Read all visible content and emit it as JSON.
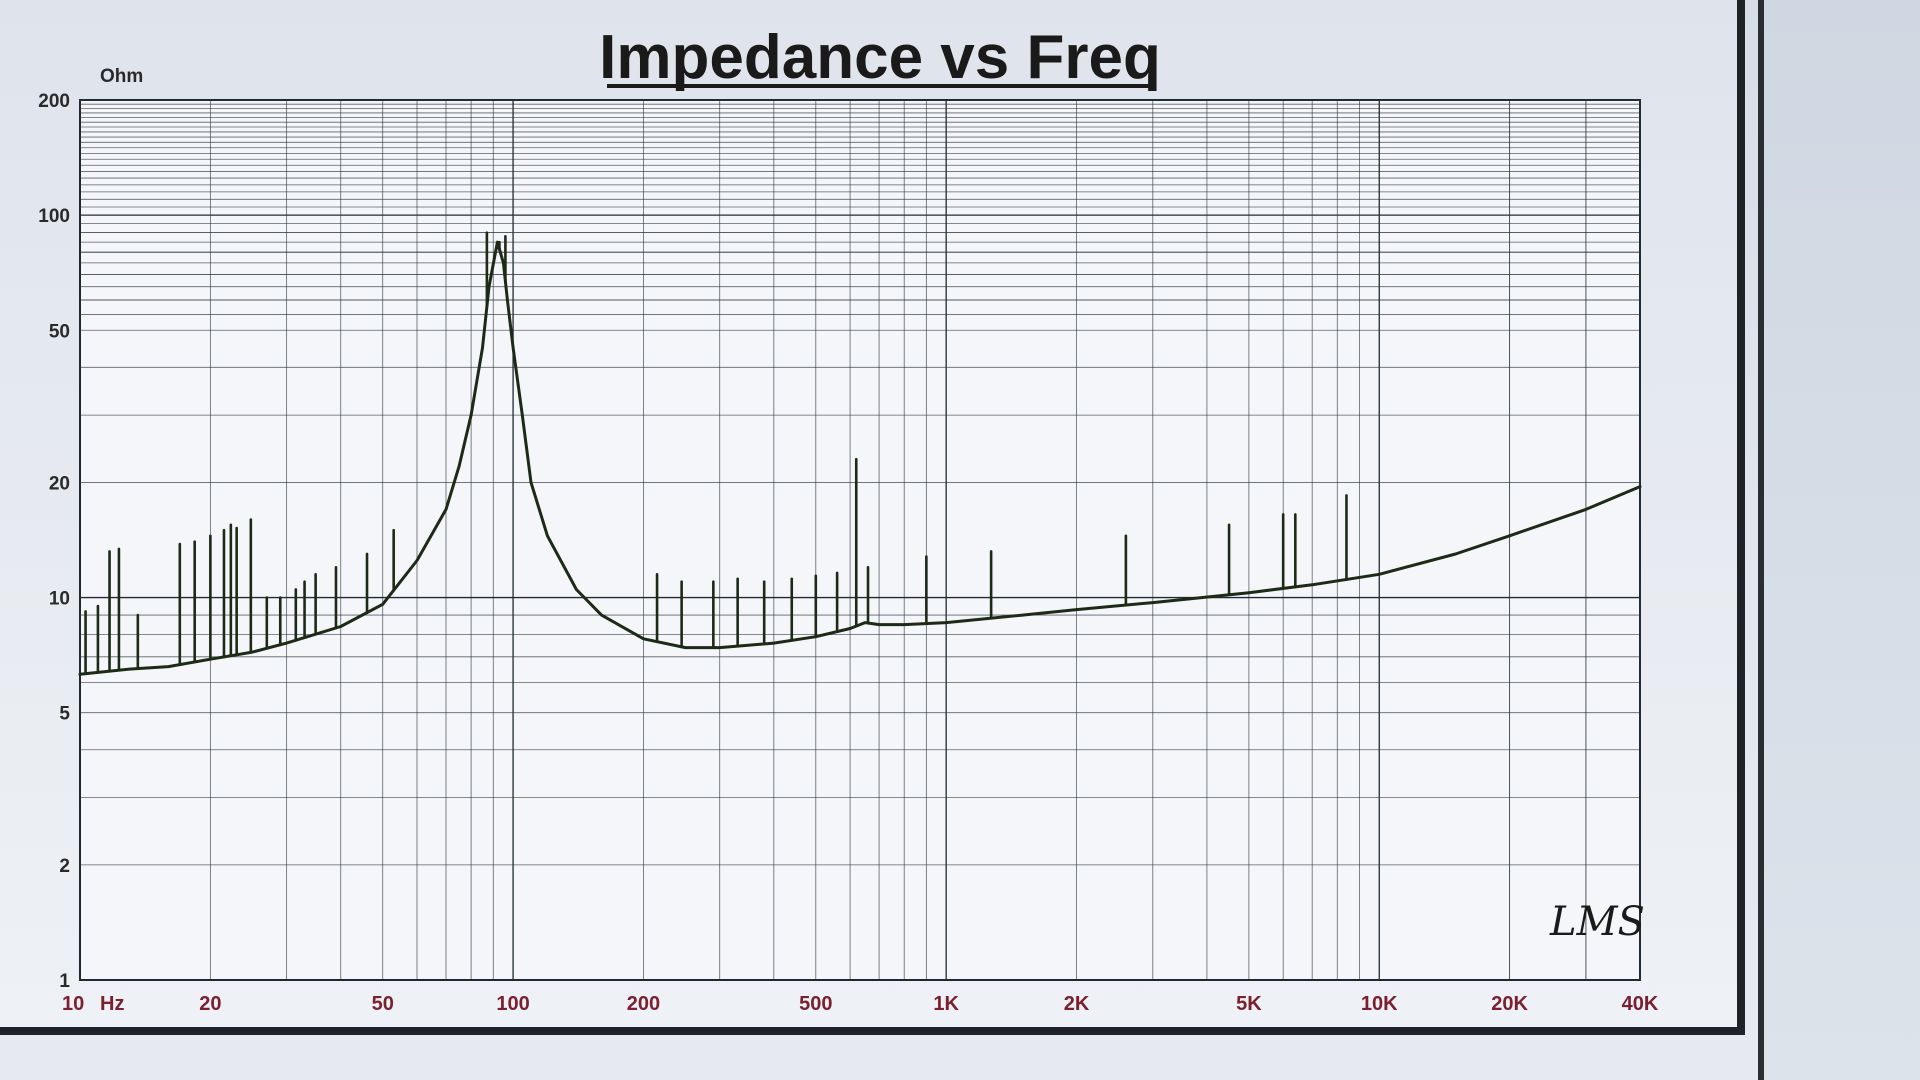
{
  "chart_data": {
    "type": "line",
    "title": "Impedance vs Freq",
    "ylabel_unit": "Ohm",
    "xlabel_unit": "Hz",
    "x_scale": "log",
    "y_scale": "log",
    "xlim": [
      10,
      40000
    ],
    "ylim": [
      1,
      200
    ],
    "grid": true,
    "x_ticks": [
      {
        "v": 10,
        "label": "10"
      },
      {
        "v": 20,
        "label": "20"
      },
      {
        "v": 50,
        "label": "50"
      },
      {
        "v": 100,
        "label": "100"
      },
      {
        "v": 200,
        "label": "200"
      },
      {
        "v": 500,
        "label": "500"
      },
      {
        "v": 1000,
        "label": "1K"
      },
      {
        "v": 2000,
        "label": "2K"
      },
      {
        "v": 5000,
        "label": "5K"
      },
      {
        "v": 10000,
        "label": "10K"
      },
      {
        "v": 20000,
        "label": "20K"
      },
      {
        "v": 40000,
        "label": "40K"
      }
    ],
    "y_ticks": [
      {
        "v": 1,
        "label": "1"
      },
      {
        "v": 2,
        "label": "2"
      },
      {
        "v": 5,
        "label": "5"
      },
      {
        "v": 10,
        "label": "10"
      },
      {
        "v": 20,
        "label": "20"
      },
      {
        "v": 50,
        "label": "50"
      },
      {
        "v": 100,
        "label": "100"
      },
      {
        "v": 200,
        "label": "200"
      }
    ],
    "series": [
      {
        "x": [
          10,
          13,
          16,
          20,
          25,
          30,
          40,
          50,
          60,
          70,
          75,
          80,
          85,
          88,
          92,
          95,
          97,
          100,
          105,
          110,
          120,
          140,
          160,
          200,
          250,
          300,
          400,
          500,
          600,
          650,
          700,
          800,
          1000,
          1500,
          2000,
          3000,
          5000,
          7000,
          10000,
          15000,
          20000,
          30000,
          40000
        ],
        "y": [
          6.3,
          6.5,
          6.6,
          6.9,
          7.2,
          7.6,
          8.4,
          9.6,
          12.5,
          17,
          22,
          30,
          45,
          65,
          85,
          75,
          60,
          45,
          30,
          20,
          14.5,
          10.5,
          9,
          7.8,
          7.4,
          7.4,
          7.6,
          7.9,
          8.3,
          8.6,
          8.5,
          8.5,
          8.6,
          9,
          9.3,
          9.7,
          10.3,
          10.8,
          11.5,
          13,
          14.5,
          17,
          19.5
        ]
      }
    ],
    "spikes": [
      {
        "x": 10.3,
        "y": 9.2
      },
      {
        "x": 11,
        "y": 9.5
      },
      {
        "x": 11.7,
        "y": 13.2
      },
      {
        "x": 12.3,
        "y": 13.4
      },
      {
        "x": 13.6,
        "y": 9
      },
      {
        "x": 17,
        "y": 13.8
      },
      {
        "x": 18.4,
        "y": 14
      },
      {
        "x": 20,
        "y": 14.5
      },
      {
        "x": 21.5,
        "y": 15
      },
      {
        "x": 22.3,
        "y": 15.5
      },
      {
        "x": 23,
        "y": 15.2
      },
      {
        "x": 24.8,
        "y": 16
      },
      {
        "x": 27,
        "y": 10
      },
      {
        "x": 29,
        "y": 10
      },
      {
        "x": 31.5,
        "y": 10.5
      },
      {
        "x": 33,
        "y": 11
      },
      {
        "x": 35,
        "y": 11.5
      },
      {
        "x": 39,
        "y": 12
      },
      {
        "x": 46,
        "y": 13
      },
      {
        "x": 53,
        "y": 15
      },
      {
        "x": 87,
        "y": 90
      },
      {
        "x": 93,
        "y": 85
      },
      {
        "x": 96,
        "y": 88
      },
      {
        "x": 215,
        "y": 11.5
      },
      {
        "x": 245,
        "y": 11
      },
      {
        "x": 290,
        "y": 11
      },
      {
        "x": 330,
        "y": 11.2
      },
      {
        "x": 380,
        "y": 11
      },
      {
        "x": 440,
        "y": 11.2
      },
      {
        "x": 500,
        "y": 11.4
      },
      {
        "x": 560,
        "y": 11.6
      },
      {
        "x": 620,
        "y": 23
      },
      {
        "x": 660,
        "y": 12
      },
      {
        "x": 900,
        "y": 12.8
      },
      {
        "x": 1270,
        "y": 13.2
      },
      {
        "x": 2600,
        "y": 14.5
      },
      {
        "x": 4500,
        "y": 15.5
      },
      {
        "x": 6000,
        "y": 16.5
      },
      {
        "x": 6400,
        "y": 16.5
      },
      {
        "x": 8400,
        "y": 18.5
      }
    ]
  },
  "watermark": "LMS"
}
